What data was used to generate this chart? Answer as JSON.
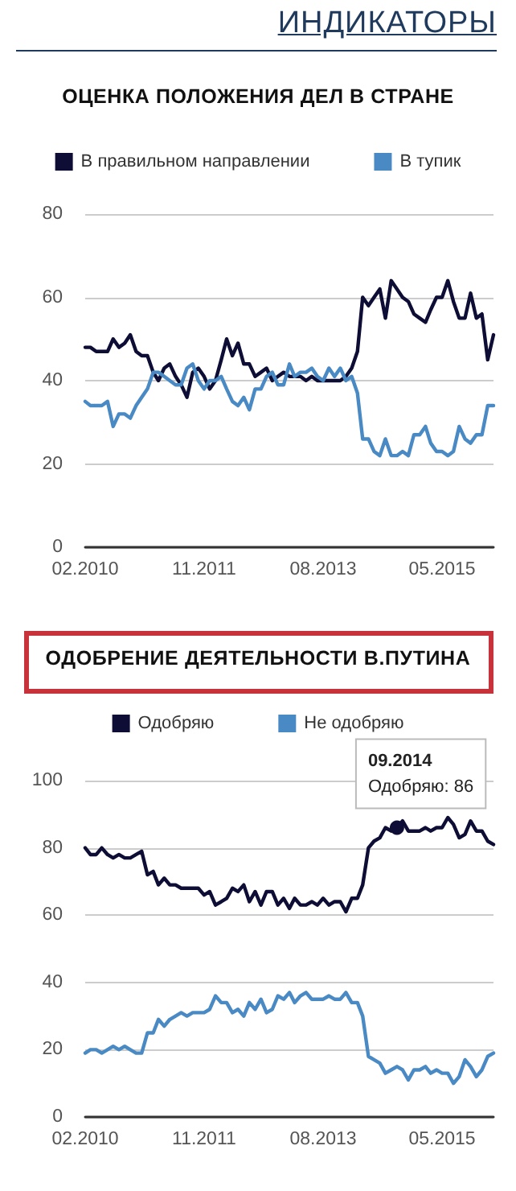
{
  "chart_data": [
    {
      "type": "line",
      "title": "ОЦЕНКА ПОЛОЖЕНИЯ ДЕЛ В СТРАНЕ",
      "annotations": [
        "ИНДИКАТОРЫ"
      ],
      "x": [
        "2010-02",
        "2010-03",
        "2010-04",
        "2010-05",
        "2010-06",
        "2010-07",
        "2010-08",
        "2010-09",
        "2010-10",
        "2010-11",
        "2010-12",
        "2011-01",
        "2011-02",
        "2011-03",
        "2011-04",
        "2011-05",
        "2011-06",
        "2011-07",
        "2011-08",
        "2011-09",
        "2011-10",
        "2011-11",
        "2011-12",
        "2012-01",
        "2012-02",
        "2012-03",
        "2012-04",
        "2012-05",
        "2012-06",
        "2012-07",
        "2012-08",
        "2012-09",
        "2012-10",
        "2012-11",
        "2012-12",
        "2013-01",
        "2013-02",
        "2013-03",
        "2013-04",
        "2013-05",
        "2013-06",
        "2013-07",
        "2013-08",
        "2013-09",
        "2013-10",
        "2013-11",
        "2013-12",
        "2014-01",
        "2014-02",
        "2014-03",
        "2014-04",
        "2014-05",
        "2014-06",
        "2014-07",
        "2014-08",
        "2014-09",
        "2014-10",
        "2014-11",
        "2014-12",
        "2015-01",
        "2015-02",
        "2015-03",
        "2015-04",
        "2015-05",
        "2015-06",
        "2015-07",
        "2015-08",
        "2015-09",
        "2015-10",
        "2015-11",
        "2015-12",
        "2016-01",
        "2016-02"
      ],
      "series": [
        {
          "name": "В правильном направлении",
          "color": "#0d0d35",
          "values": [
            48,
            48,
            47,
            47,
            47,
            50,
            48,
            49,
            51,
            47,
            46,
            46,
            42,
            40,
            43,
            44,
            41,
            39,
            36,
            42,
            43,
            41,
            38,
            40,
            45,
            50,
            46,
            49,
            44,
            44,
            41,
            42,
            43,
            40,
            41,
            42,
            41,
            41,
            41,
            40,
            41,
            40,
            40,
            40,
            40,
            40,
            41,
            43,
            47,
            60,
            58,
            60,
            62,
            55,
            64,
            62,
            60,
            59,
            56,
            55,
            54,
            57,
            60,
            60,
            64,
            59,
            55,
            55,
            61,
            55,
            56,
            45,
            51
          ]
        },
        {
          "name": "В тупик",
          "color": "#4a8ac4",
          "values": [
            35,
            34,
            34,
            34,
            35,
            29,
            32,
            32,
            31,
            34,
            36,
            38,
            42,
            42,
            41,
            40,
            39,
            39,
            43,
            44,
            40,
            38,
            40,
            40,
            41,
            38,
            35,
            34,
            36,
            33,
            38,
            38,
            41,
            42,
            39,
            39,
            44,
            41,
            42,
            42,
            43,
            41,
            40,
            43,
            41,
            43,
            40,
            41,
            37,
            26,
            26,
            23,
            22,
            26,
            22,
            22,
            23,
            22,
            27,
            27,
            29,
            25,
            23,
            23,
            22,
            23,
            29,
            26,
            25,
            27,
            27,
            34,
            34
          ]
        }
      ],
      "xlim": [
        "2010-02",
        "2016-02"
      ],
      "xticks": [
        {
          "value": "2010-02",
          "label": "02.2010"
        },
        {
          "value": "2011-11",
          "label": "11.2011"
        },
        {
          "value": "2013-08",
          "label": "08.2013"
        },
        {
          "value": "2015-05",
          "label": "05.2015"
        }
      ],
      "ylim": [
        0,
        80
      ],
      "yticks": [
        0,
        20,
        40,
        60,
        80
      ],
      "grid": "y",
      "legend": "top",
      "marker": "none",
      "line_style": "solid"
    },
    {
      "type": "line",
      "title": "ОДОБРЕНИЕ ДЕЯТЕЛЬНОСТИ В.ПУТИНА",
      "annotations": [
        {
          "text": "09.2014\nОдобряю: 86",
          "x": "2014-09",
          "y": 86
        }
      ],
      "x": [
        "2010-02",
        "2010-03",
        "2010-04",
        "2010-05",
        "2010-06",
        "2010-07",
        "2010-08",
        "2010-09",
        "2010-10",
        "2010-11",
        "2010-12",
        "2011-01",
        "2011-02",
        "2011-03",
        "2011-04",
        "2011-05",
        "2011-06",
        "2011-07",
        "2011-08",
        "2011-09",
        "2011-10",
        "2011-11",
        "2011-12",
        "2012-01",
        "2012-02",
        "2012-03",
        "2012-04",
        "2012-05",
        "2012-06",
        "2012-07",
        "2012-08",
        "2012-09",
        "2012-10",
        "2012-11",
        "2012-12",
        "2013-01",
        "2013-02",
        "2013-03",
        "2013-04",
        "2013-05",
        "2013-06",
        "2013-07",
        "2013-08",
        "2013-09",
        "2013-10",
        "2013-11",
        "2013-12",
        "2014-01",
        "2014-02",
        "2014-03",
        "2014-04",
        "2014-05",
        "2014-06",
        "2014-07",
        "2014-08",
        "2014-09",
        "2014-10",
        "2014-11",
        "2014-12",
        "2015-01",
        "2015-02",
        "2015-03",
        "2015-04",
        "2015-05",
        "2015-06",
        "2015-07",
        "2015-08",
        "2015-09",
        "2015-10",
        "2015-11",
        "2015-12",
        "2016-01",
        "2016-02"
      ],
      "series": [
        {
          "name": "Одобряю",
          "color": "#0d0d35",
          "values": [
            80,
            78,
            78,
            80,
            78,
            77,
            78,
            77,
            77,
            78,
            79,
            72,
            73,
            69,
            71,
            69,
            69,
            68,
            68,
            68,
            68,
            66,
            67,
            63,
            64,
            65,
            68,
            67,
            69,
            64,
            67,
            63,
            67,
            67,
            63,
            65,
            62,
            65,
            63,
            63,
            64,
            63,
            65,
            63,
            64,
            64,
            61,
            65,
            65,
            69,
            80,
            82,
            83,
            86,
            85,
            86,
            88,
            85,
            85,
            85,
            86,
            85,
            86,
            86,
            89,
            87,
            83,
            84,
            88,
            85,
            85,
            82,
            81
          ]
        },
        {
          "name": "Не одобряю",
          "color": "#4a8ac4",
          "values": [
            19,
            20,
            20,
            19,
            20,
            21,
            20,
            21,
            20,
            19,
            19,
            25,
            25,
            29,
            27,
            29,
            30,
            31,
            30,
            31,
            31,
            31,
            32,
            36,
            34,
            34,
            31,
            32,
            30,
            34,
            32,
            35,
            31,
            32,
            36,
            35,
            37,
            34,
            36,
            37,
            35,
            35,
            35,
            36,
            35,
            35,
            37,
            34,
            34,
            30,
            18,
            17,
            16,
            13,
            14,
            15,
            14,
            11,
            14,
            14,
            15,
            13,
            14,
            13,
            13,
            10,
            12,
            17,
            15,
            12,
            14,
            18,
            19
          ]
        }
      ],
      "xlim": [
        "2010-02",
        "2016-02"
      ],
      "xticks": [
        {
          "value": "2010-02",
          "label": "02.2010"
        },
        {
          "value": "2011-11",
          "label": "11.2011"
        },
        {
          "value": "2013-08",
          "label": "08.2013"
        },
        {
          "value": "2015-05",
          "label": "05.2015"
        }
      ],
      "ylim": [
        0,
        100
      ],
      "yticks": [
        0,
        20,
        40,
        60,
        80,
        100
      ],
      "grid": "y",
      "legend": "top",
      "marker": "none",
      "line_style": "solid"
    }
  ]
}
